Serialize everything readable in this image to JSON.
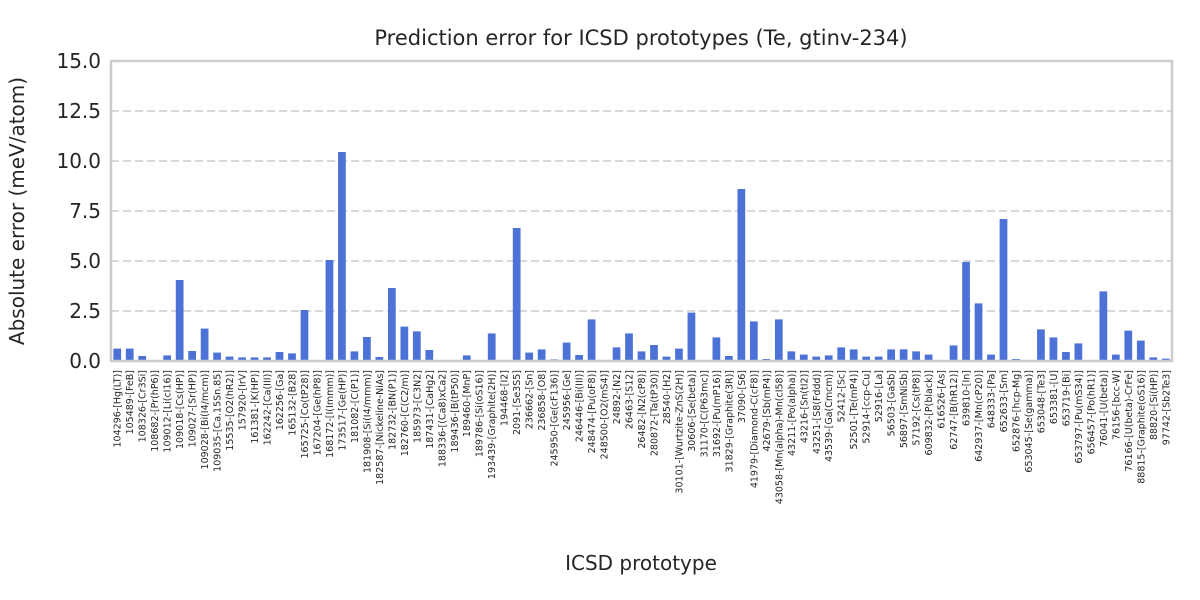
{
  "chart_data": {
    "type": "bar",
    "title": "Prediction error for ICSD prototypes (Te, gtinv-234)",
    "xlabel": "ICSD prototype",
    "ylabel": "Absolute error (meV/atom)",
    "ylim": [
      0,
      15
    ],
    "yticks": [
      "0.0",
      "2.5",
      "5.0",
      "7.5",
      "10.0",
      "12.5",
      "15.0"
    ],
    "grid": true,
    "bar_color": "#4c72d8",
    "categories": [
      "104296-[Hg(LT)]",
      "105489-[FeB]",
      "108326-[Cr3Si]",
      "108682-[Pr(hP6)]",
      "109012-[Li(cI16)]",
      "109018-[Cs(HP)]",
      "109027-[Sr(HP)]",
      "109028-[Bi(I4/mcm)]",
      "109035-[Ca.15Sn.85]",
      "15535-[O2(hR2)]",
      "157920-[IrV]",
      "161381-[K(HP)]",
      "162242-[Ca(III)]",
      "162256-[Ga]",
      "165132-[B28]",
      "165725-[Co(tP28)]",
      "167204-[Ge(hP8)]",
      "168172-[I(Immm)]",
      "173517-[Ge(HP)]",
      "181082-[C(P1)]",
      "181908-[Si(I4/mmm)]",
      "182587-[Nickeline-NiAs]",
      "182732-[BN(P1)]",
      "182760-[C(C2/m)]",
      "185973-[C3N2]",
      "187431-[CaHg2]",
      "188336-[(Ca8)xCa2]",
      "189436-[B(tP50)]",
      "189460-[MnP]",
      "189786-[Si(oS16)]",
      "193439-[Graphite(2H)]",
      "194468-[I2]",
      "2091-[Se3S5]",
      "236662-[Sn]",
      "236858-[O8]",
      "245950-[Ge(cF136)]",
      "245956-[Ge]",
      "246446-[Bi(III)]",
      "248474-[Pu(oF8)]",
      "248500-[O2(mS4)]",
      "24892-[N2]",
      "26463-[S12]",
      "26482-[N2(cP8)]",
      "280872-[Ta(tP30)]",
      "28540-[H2]",
      "30101-[Wurtzite-ZnS(2H)]",
      "30606-[Se(beta)]",
      "31170-[C(P63mc)]",
      "31692-[Pu(mP16)]",
      "31829-[Graphite(3R)]",
      "37090-[S6]",
      "41979-[Diamond-C(cF8)]",
      "42679-[Sb(mP4)]",
      "43058-[Mn(alpha)-Mn(cI58)]",
      "43211-[Po(alpha)]",
      "43216-[Sn(tI2)]",
      "43251-[S8(Fddd)]",
      "43539-[Ga(Cmcm)]",
      "52412-[Sc]",
      "52501-[Te(mP4)]",
      "52914-[ccp-Cu]",
      "52916-[La]",
      "56503-[GaSb]",
      "56897-[SmNiSb]",
      "57192-[Cs(tP8)]",
      "609832-[P(black)]",
      "616526-[As]",
      "62747-[B(hR12)]",
      "639810-[In]",
      "642937-[Mn(cP20)]",
      "648333-[Pa]",
      "652633-[Sm]",
      "652876-[hcp-Mg]",
      "653045-[Se(gamma)]",
      "653048-[Te3]",
      "653381-[U]",
      "653719-[Bi]",
      "653797-[Pu(mS34)]",
      "656457-[Po(hR1)]",
      "76041-[U(beta)]",
      "76156-[bcc-W]",
      "76166-[U(beta)-CrFe]",
      "88815-[Graphite(oS16)]",
      "88820-[Si(HP)]",
      "97742-[Sb2Te3]"
    ],
    "values": [
      0.62,
      0.62,
      0.25,
      0.02,
      0.28,
      4.05,
      0.5,
      1.62,
      0.42,
      0.22,
      0.18,
      0.18,
      0.18,
      0.45,
      0.38,
      2.55,
      0.05,
      5.05,
      10.45,
      0.48,
      1.2,
      0.2,
      3.65,
      1.72,
      1.48,
      0.55,
      0.02,
      0.02,
      0.28,
      0.02,
      1.38,
      0.02,
      6.65,
      0.42,
      0.58,
      0.08,
      0.92,
      0.3,
      2.08,
      0.02,
      0.68,
      1.38,
      0.48,
      0.8,
      0.22,
      0.62,
      2.42,
      0.02,
      1.18,
      0.25,
      8.6,
      1.98,
      0.1,
      2.08,
      0.48,
      0.32,
      0.22,
      0.28,
      0.68,
      0.58,
      0.22,
      0.22,
      0.58,
      0.58,
      0.48,
      0.32,
      0.02,
      0.78,
      4.95,
      2.88,
      0.32,
      7.1,
      0.1,
      0.02,
      1.58,
      1.18,
      0.45,
      0.88,
      0.02,
      3.48,
      0.32,
      1.52,
      1.02,
      0.18,
      0.12
    ]
  }
}
